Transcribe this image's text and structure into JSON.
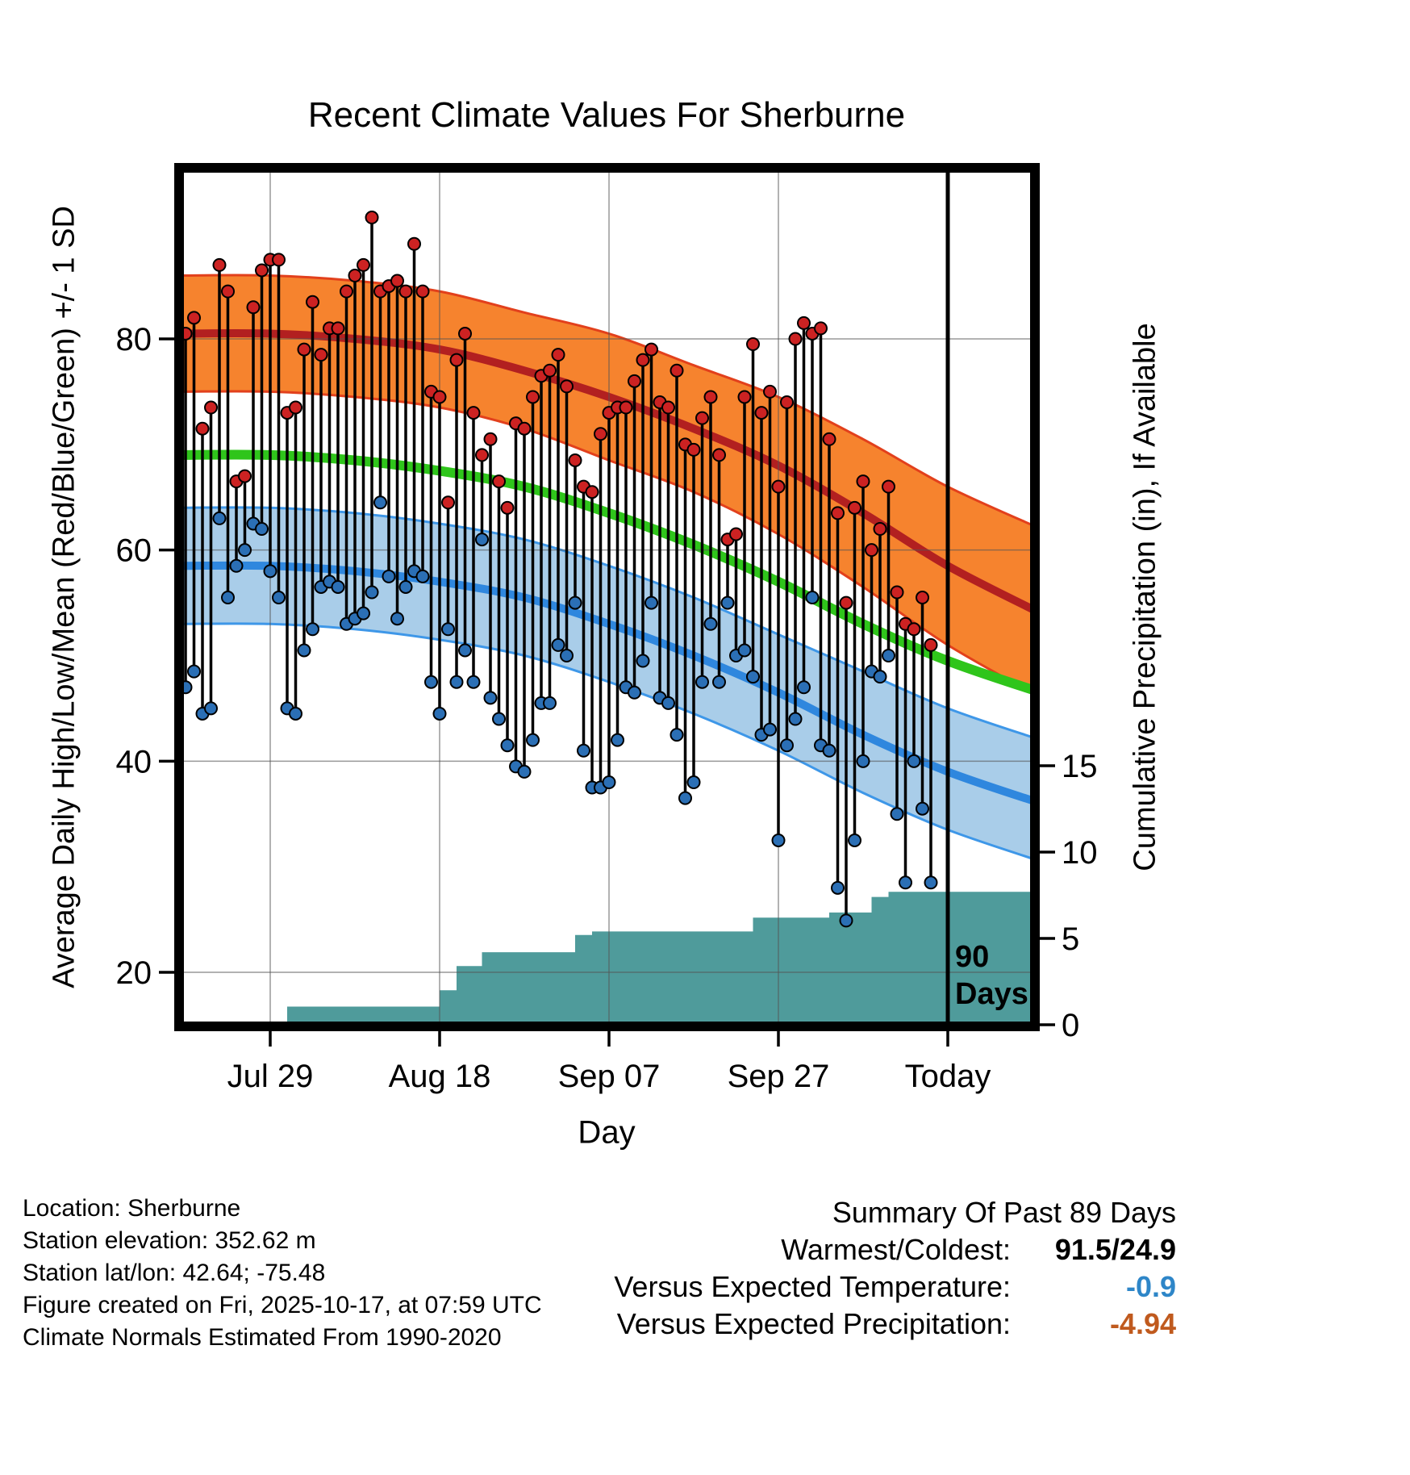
{
  "title": "Recent Climate Values For Sherburne",
  "axes": {
    "left_label": "Average Daily High/Low/Mean (Red/Blue/Green) +/- 1 SD",
    "right_label": "Cumulative Precipitation (in), If Available",
    "x_label": "Day",
    "x_ticks": [
      {
        "label": "Jul 29",
        "date": "2025-07-29"
      },
      {
        "label": "Aug 18",
        "date": "2025-08-18"
      },
      {
        "label": "Sep 07",
        "date": "2025-09-07"
      },
      {
        "label": "Sep 27",
        "date": "2025-09-27"
      },
      {
        "label": "Today",
        "date": "2025-10-17"
      }
    ],
    "left_ticks": [
      20,
      40,
      60,
      80
    ],
    "right_ticks": [
      0,
      5,
      10,
      15
    ]
  },
  "annotations": {
    "marker_line_date": "2025-10-17",
    "marker_label": [
      "90",
      "Days"
    ]
  },
  "footer": {
    "lines": [
      "Location: Sherburne",
      "Station elevation: 352.62 m",
      "Station lat/lon: 42.64; -75.48",
      "Figure created on Fri, 2025-10-17, at 07:59 UTC",
      "Climate Normals Estimated From 1990-2020"
    ]
  },
  "summary": {
    "title": "Summary Of Past 89 Days",
    "rows": [
      {
        "label": "Warmest/Coldest:",
        "value": "91.5/24.9",
        "color": "#000000"
      },
      {
        "label": "Versus Expected Temperature:",
        "value": "-0.9",
        "color": "#2E86C8"
      },
      {
        "label": "Versus Expected Precipitation:",
        "value": "-4.94",
        "color": "#C05A1E"
      }
    ]
  },
  "chart_data": {
    "type": "composite",
    "description": "Daily observed high/low temperatures (dots joined by vertical bars), climate-normal mean/high/low bands (+/- 1 SD), and cumulative precipitation step area on right axis",
    "temperature_axis": {
      "ticks": [
        20,
        40,
        60,
        80
      ],
      "approx_range": [
        15,
        96
      ]
    },
    "precip_axis": {
      "ticks": [
        0,
        5,
        10,
        15
      ],
      "units": "in"
    },
    "daily": {
      "start_date": "2025-07-19",
      "high": [
        80.5,
        82,
        71.5,
        73.5,
        87,
        84.5,
        66.5,
        67,
        83,
        86.5,
        87.5,
        87.5,
        73,
        73.5,
        79,
        83.5,
        78.5,
        81,
        81,
        84.5,
        86,
        87,
        91.5,
        84.5,
        85,
        85.5,
        84.5,
        89,
        84.5,
        75,
        74.5,
        64.5,
        78,
        80.5,
        73,
        69,
        70.5,
        66.5,
        64,
        72,
        71.5,
        74.5,
        76.5,
        77,
        78.5,
        75.5,
        68.5,
        66,
        65.5,
        71,
        73,
        73.5,
        73.5,
        76,
        78,
        79,
        74,
        73.5,
        77,
        70,
        69.5,
        72.5,
        74.5,
        69,
        61,
        61.5,
        74.5,
        79.5,
        73,
        75,
        66,
        74,
        80,
        81.5,
        80.5,
        81,
        70.5,
        63.5,
        55,
        64,
        66.5,
        60,
        62,
        66,
        56,
        53,
        52.5,
        55.5,
        51
      ],
      "low": [
        47,
        48.5,
        44.5,
        45,
        63,
        55.5,
        58.5,
        60,
        62.5,
        62,
        58,
        55.5,
        45,
        44.5,
        50.5,
        52.5,
        56.5,
        57,
        56.5,
        53,
        53.5,
        54,
        56,
        64.5,
        57.5,
        53.5,
        56.5,
        58,
        57.5,
        47.5,
        44.5,
        52.5,
        47.5,
        50.5,
        47.5,
        61,
        46,
        44,
        41.5,
        39.5,
        39,
        42,
        45.5,
        45.5,
        51,
        50,
        55,
        41,
        37.5,
        37.5,
        38,
        42,
        47,
        46.5,
        49.5,
        55,
        46,
        45.5,
        42.5,
        36.5,
        38,
        47.5,
        53,
        47.5,
        55,
        50,
        50.5,
        48,
        42.5,
        43,
        32.5,
        41.5,
        44,
        47,
        55.5,
        41.5,
        41,
        28,
        24.9,
        32.5,
        40,
        48.5,
        48,
        50,
        35,
        28.5,
        40,
        35.5,
        28.5
      ]
    },
    "normals": {
      "dates": [
        "2025-07-18",
        "2025-07-29",
        "2025-08-08",
        "2025-08-18",
        "2025-08-28",
        "2025-09-07",
        "2025-09-17",
        "2025-09-27",
        "2025-10-07",
        "2025-10-17",
        "2025-10-28"
      ],
      "high_mean": [
        80.5,
        80.5,
        80,
        79,
        77,
        74.5,
        71.5,
        68,
        63.5,
        58.5,
        54
      ],
      "high_upper": [
        86,
        86,
        85.5,
        84.5,
        82.5,
        80.5,
        77.5,
        74.5,
        70.5,
        66,
        62
      ],
      "high_lower": [
        75,
        75,
        74.5,
        73.5,
        71.5,
        68.5,
        65.5,
        61.5,
        56.5,
        51,
        46
      ],
      "mean": [
        69,
        69,
        68.5,
        67.5,
        66,
        63.5,
        60.5,
        57,
        53,
        49.5,
        46.5
      ],
      "low_mean": [
        58.5,
        58.5,
        58,
        57,
        55.5,
        53,
        50,
        46.5,
        42.5,
        39,
        36
      ],
      "low_upper": [
        64,
        64,
        63.5,
        62.5,
        61,
        58.5,
        55.5,
        52,
        48.5,
        45,
        42
      ],
      "low_lower": [
        53,
        53,
        52.5,
        51.5,
        50,
        47.5,
        44.5,
        41,
        37,
        33.5,
        30.5
      ]
    },
    "cumulative_precip": {
      "start_value": 0,
      "steps": [
        [
          "2025-07-31",
          1.05
        ],
        [
          "2025-08-18",
          2.0
        ],
        [
          "2025-08-20",
          3.4
        ],
        [
          "2025-08-23",
          4.2
        ],
        [
          "2025-09-03",
          5.2
        ],
        [
          "2025-09-05",
          5.4
        ],
        [
          "2025-09-24",
          6.2
        ],
        [
          "2025-10-03",
          6.5
        ],
        [
          "2025-10-08",
          7.4
        ],
        [
          "2025-10-10",
          7.7
        ]
      ]
    },
    "colors": {
      "high_band_fill": "#F6832E",
      "high_band_edge": "#E2401C",
      "high_mean_line": "#B22020",
      "high_dot": "#CC2222",
      "mean_line": "#2FC51B",
      "low_band_fill": "#A9CDE9",
      "low_band_edge": "#3E97E8",
      "low_mean_line": "#2F87DE",
      "low_dot": "#2B6FB5",
      "precip_fill": "#4F9B9B",
      "grid": "#555555",
      "marker_line": "#000000"
    }
  }
}
